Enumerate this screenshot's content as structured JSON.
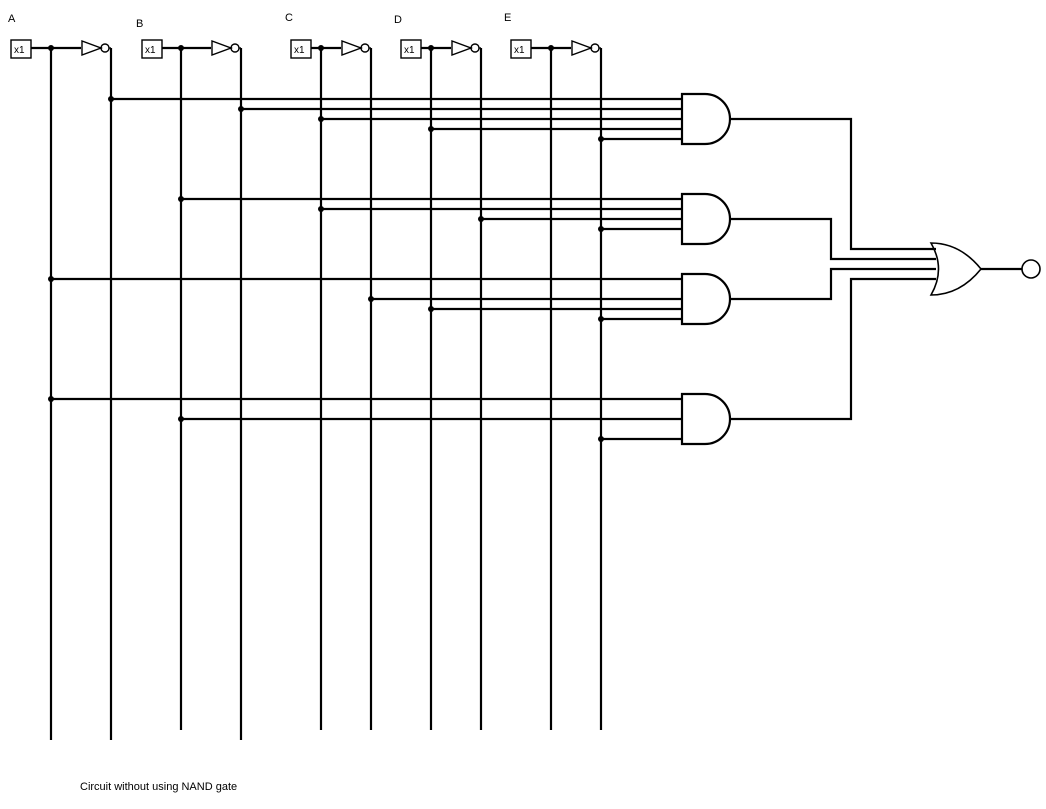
{
  "inputs": [
    {
      "name": "A",
      "box_label": "x1"
    },
    {
      "name": "B",
      "box_label": "x1"
    },
    {
      "name": "C",
      "box_label": "x1"
    },
    {
      "name": "D",
      "box_label": "x1"
    },
    {
      "name": "E",
      "box_label": "x1"
    }
  ],
  "caption": "Circuit without using NAND gate",
  "gates": {
    "and_gates": 4,
    "not_gates": 5,
    "or_gates": 1
  },
  "colors": {
    "wire": "#000000",
    "background": "#ffffff"
  }
}
